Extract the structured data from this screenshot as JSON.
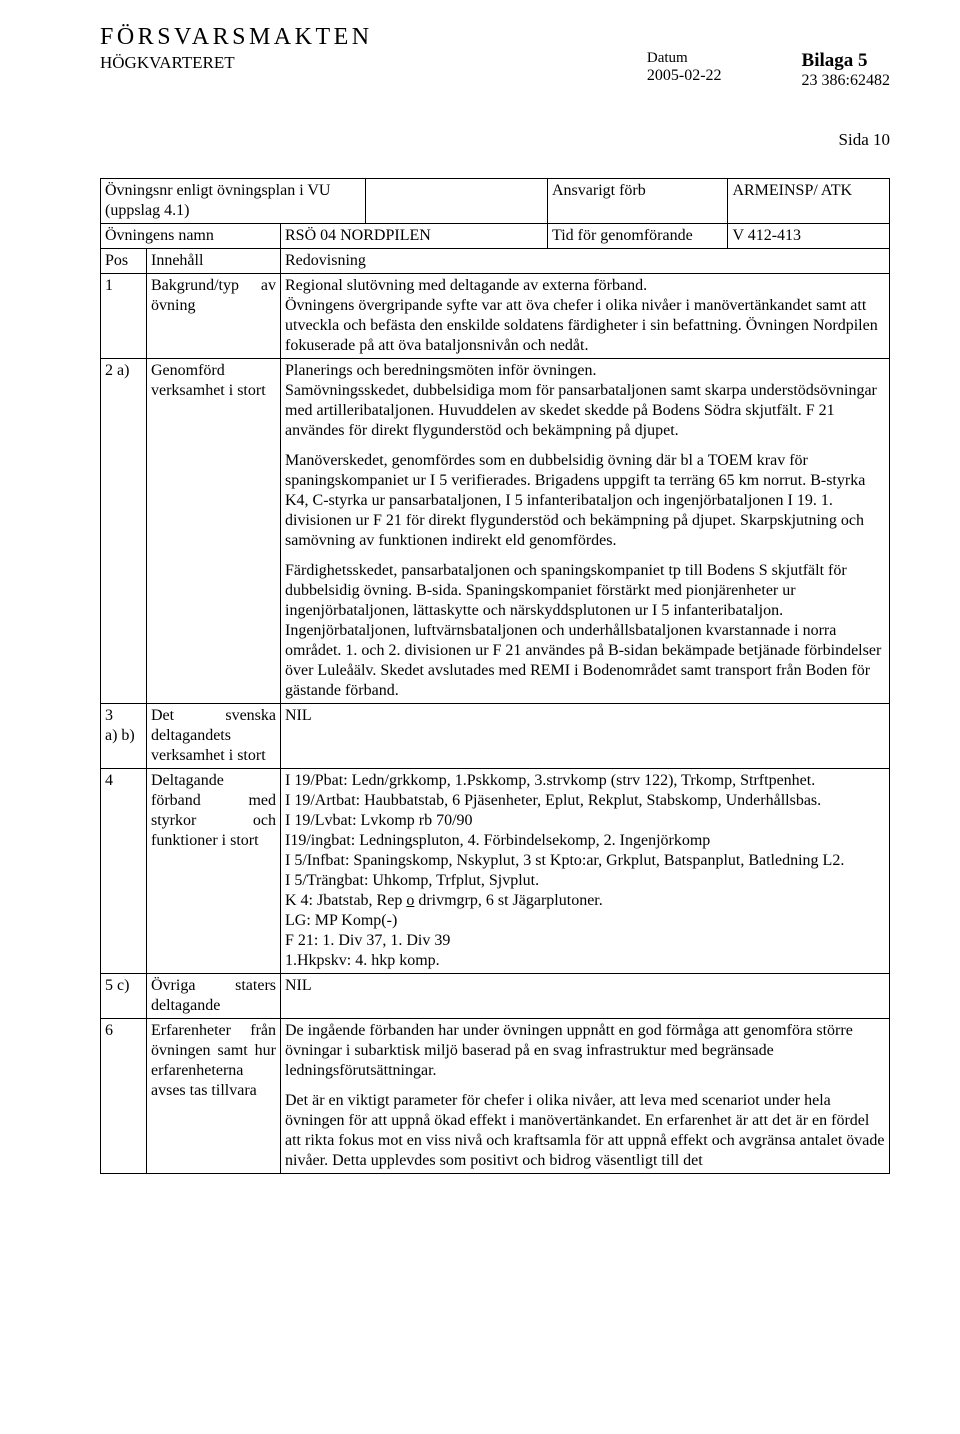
{
  "header": {
    "org": "FÖRSVARSMAKTEN",
    "subunit": "HÖGKVARTERET",
    "datum_label": "Datum",
    "datum_value": "2005-02-22",
    "bilaga_title": "Bilaga 5",
    "bilaga_ref": "23 386:62482",
    "sida": "Sida 10"
  },
  "meta": {
    "ovningsnr_label": "Övningsnr enligt övningsplan i VU (uppslag 4.1)",
    "ansvarigt_label": "Ansvarigt förb",
    "ansvarigt_value": "ARMEINSP/ ATK",
    "ovningens_namn_label": "Övningens namn",
    "ovningens_namn_value": "RSÖ 04 NORDPILEN",
    "tid_label": "Tid för genomförande",
    "tid_value": "V 412-413",
    "pos_label": "Pos",
    "innehall_label": "Innehåll",
    "redovisning_label": "Redovisning"
  },
  "rows": {
    "r1": {
      "pos": "1",
      "innehall": "Bakgrund/typ av övning",
      "redovisning": "Regional slutövning med deltagande av externa förband.\nÖvningens övergripande syfte var att öva chefer i olika nivåer i manövertänkandet samt att utveckla och befästa den enskilde soldatens färdigheter i sin befattning. Övningen Nordpilen fokuserade på att öva bataljonsnivån och nedåt."
    },
    "r2": {
      "pos": "2 a)",
      "innehall": "Genomförd verksamhet i stort",
      "redovisning_p1": "Planerings och beredningsmöten inför övningen.\nSamövningsskedet, dubbelsidiga mom för pansarbataljonen samt skarpa understödsövningar med artilleribataljonen. Huvuddelen av skedet skedde på Bodens Södra skjutfält. F 21 användes för direkt flygunderstöd och bekämpning på djupet.",
      "redovisning_p2": "Manöverskedet, genomfördes som en dubbelsidig övning där bl a  TOEM krav för spaningskompaniet ur I 5 verifierades. Brigadens uppgift ta terräng 65 km norrut. B-styrka K4, C-styrka ur pansarbataljonen, I 5 infanteribataljon och ingenjörbataljonen I 19. 1. divisionen ur F 21 för direkt flygunderstöd och bekämpning på djupet. Skarpskjutning och samövning av funktionen indirekt eld genomfördes.",
      "redovisning_p3": "Färdighetsskedet, pansarbataljonen och spaningskompaniet tp till Bodens S skjutfält för dubbelsidig övning. B-sida. Spaningskompaniet förstärkt med pionjärenheter ur ingenjörbataljonen, lättaskytte och närskyddsplutonen ur I 5 infanteribataljon. Ingenjörbataljonen, luftvärnsbataljonen och underhållsbataljonen kvarstannade i norra området. 1. och 2. divisionen ur F 21 användes på B-sidan bekämpade betjänade förbindelser över Luleåälv. Skedet avslutades med REMI i Bodenområdet samt transport från Boden för gästande förband."
    },
    "r3": {
      "pos": "3\na) b)",
      "innehall": "Det svenska deltagandets verksamhet i stort",
      "redovisning": "NIL"
    },
    "r4": {
      "pos": "4",
      "innehall": "Deltagande förband med styrkor och funktioner i stort",
      "line1": "I 19/Pbat: Ledn/grkkomp, 1.Pskkomp, 3.strvkomp (strv 122), Trkomp, Strftpenhet.",
      "line2": "I 19/Artbat: Haubbatstab, 6 Pjäsenheter, Eplut, Rekplut, Stabskomp, Underhållsbas.",
      "line3": "I 19/Lvbat: Lvkomp rb 70/90",
      "line4": "I19/ingbat: Ledningspluton, 4. Förbindelsekomp, 2. Ingenjörkomp",
      "line5": "I 5/Infbat: Spaningskomp, Nskyplut, 3 st Kpto:ar, Grkplut, Batspanplut, Batledning L2.",
      "line6": "I 5/Trängbat: Uhkomp, Trfplut, Sjvplut.",
      "line7a": "K 4: Jbatstab, Rep ",
      "line7b_underlined": "o",
      "line7c": " drivmgrp, 6 st Jägarplutoner.",
      "line8": "LG: MP Komp(-)",
      "line9": "F 21: 1. Div 37, 1. Div 39",
      "line10": "1.Hkpskv: 4. hkp komp."
    },
    "r5": {
      "pos": "5 c)",
      "innehall": "Övriga staters deltagande",
      "redovisning": "NIL"
    },
    "r6": {
      "pos": "6",
      "innehall": "Erfarenheter från övningen samt hur erfarenheterna avses tas tillvara",
      "redovisning_p1": "De ingående förbanden har under övningen uppnått en god förmåga att genomföra större övningar i subarktisk miljö baserad på en svag infrastruktur med begränsade ledningsförutsättningar.",
      "redovisning_p2": "Det är en viktigt parameter för chefer i olika nivåer, att leva med scenariot under hela övningen för att uppnå ökad effekt i manövertänkandet. En erfarenhet är att det är en fördel att rikta fokus mot en viss nivå och kraftsamla för att uppnå effekt och avgränsa antalet övade nivåer. Detta upplevdes som positivt och bidrog väsentligt till det"
    }
  }
}
